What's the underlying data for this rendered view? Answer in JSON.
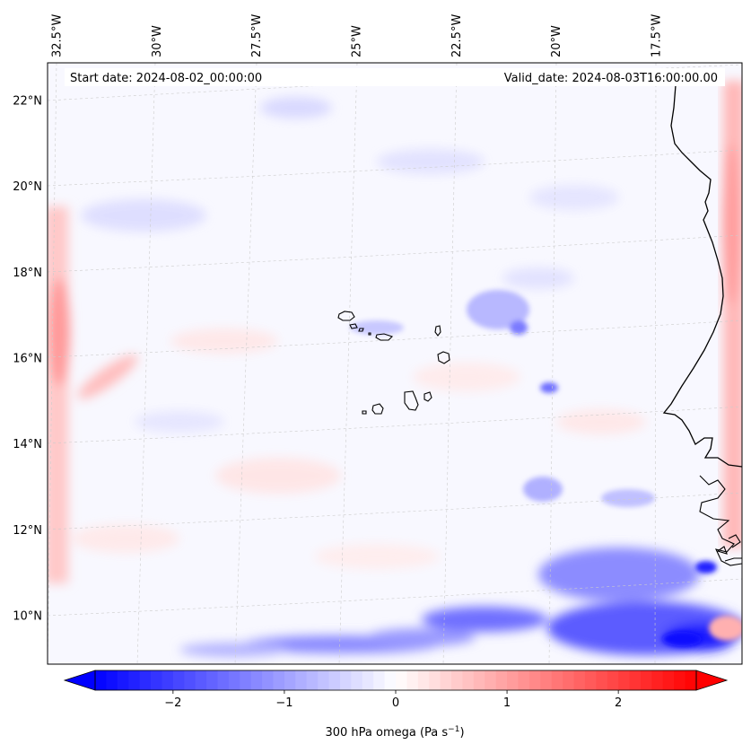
{
  "map": {
    "start_label": "Start date: 2024-08-02_00:00:00",
    "valid_label": "Valid_date: 2024-08-03T16:00:00.00",
    "variable": "300 hPa omega",
    "units_prefix": "(Pa s",
    "units_exp": "−1",
    "units_suffix": ")"
  },
  "chart_data": {
    "type": "heatmap",
    "title": "",
    "lon_ticks": [
      {
        "value": -32.5,
        "label": "32.5°W"
      },
      {
        "value": -30.0,
        "label": "30°W"
      },
      {
        "value": -27.5,
        "label": "27.5°W"
      },
      {
        "value": -25.0,
        "label": "25°W"
      },
      {
        "value": -22.5,
        "label": "22.5°W"
      },
      {
        "value": -20.0,
        "label": "20°W"
      },
      {
        "value": -17.5,
        "label": "17.5°W"
      }
    ],
    "lat_ticks": [
      {
        "value": 22,
        "label": "22°N"
      },
      {
        "value": 20,
        "label": "20°N"
      },
      {
        "value": 18,
        "label": "18°N"
      },
      {
        "value": 16,
        "label": "16°N"
      },
      {
        "value": 14,
        "label": "14°N"
      },
      {
        "value": 12,
        "label": "12°N"
      },
      {
        "value": 10,
        "label": "10°N"
      }
    ],
    "colorbar": {
      "min": -2.7,
      "max": 2.7,
      "colormap": "bwr",
      "colors": [
        "#0000ff",
        "#ffffff",
        "#ff0000"
      ],
      "ticks": [
        {
          "value": -2,
          "label": "−2"
        },
        {
          "value": -1,
          "label": "−1"
        },
        {
          "value": 0,
          "label": "0"
        },
        {
          "value": 1,
          "label": "1"
        },
        {
          "value": 2,
          "label": "2"
        }
      ],
      "extend": "both"
    },
    "features": [
      {
        "name": "Cape Verde islands",
        "lat": 15.8,
        "lon": -24.0
      },
      {
        "name": "West African coastline",
        "lon_range": [
          -17.5,
          -16.0
        ]
      }
    ],
    "field_highlights": [
      {
        "sign": "negative",
        "region": "south-east corner near 10°N 17°W",
        "value": -2.5
      },
      {
        "sign": "negative",
        "region": "band along 10°N",
        "value": -1.5
      },
      {
        "sign": "positive",
        "region": "western edge near 17°N 33°W",
        "value": 1.0
      },
      {
        "sign": "positive",
        "region": "eastern edge",
        "value": 1.0
      }
    ]
  }
}
